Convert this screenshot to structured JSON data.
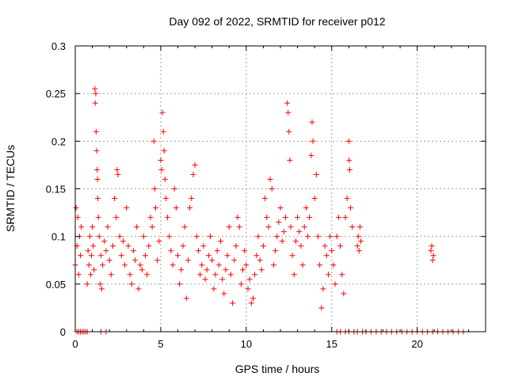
{
  "chart_data": {
    "type": "scatter",
    "title": "Day 092 of 2022, SRMTID for receiver p012",
    "xlabel": "GPS time / hours",
    "ylabel": "SRMTID / TECUs",
    "xlim": [
      0,
      24
    ],
    "ylim": [
      0,
      0.3
    ],
    "x_ticks": [
      0,
      5,
      10,
      15,
      20
    ],
    "y_ticks": [
      0,
      0.05,
      0.1,
      0.15,
      0.2,
      0.25,
      0.3
    ],
    "y_tick_labels": [
      "0",
      "0.05",
      "0.1",
      "0.15",
      "0.2",
      "0.25",
      "0.3"
    ],
    "grid": true,
    "marker": "+",
    "color": "#ff0000",
    "series": [
      {
        "name": "p012",
        "points": [
          [
            0.0,
            0.07
          ],
          [
            0.05,
            0.13
          ],
          [
            0.1,
            0.09
          ],
          [
            0.15,
            0.12
          ],
          [
            0.2,
            0.06
          ],
          [
            0.25,
            0.1
          ],
          [
            0.3,
            0.08
          ],
          [
            0.35,
            0.11
          ],
          [
            0.7,
            0.05
          ],
          [
            0.75,
            0.085
          ],
          [
            0.8,
            0.07
          ],
          [
            0.85,
            0.1
          ],
          [
            0.9,
            0.06
          ],
          [
            0.95,
            0.08
          ],
          [
            1.0,
            0.11
          ],
          [
            1.05,
            0.09
          ],
          [
            1.1,
            0.065
          ],
          [
            1.15,
            0.255
          ],
          [
            1.17,
            0.24
          ],
          [
            1.2,
            0.25
          ],
          [
            1.22,
            0.21
          ],
          [
            1.25,
            0.19
          ],
          [
            1.28,
            0.17
          ],
          [
            1.3,
            0.16
          ],
          [
            1.32,
            0.14
          ],
          [
            1.35,
            0.12
          ],
          [
            1.4,
            0.1
          ],
          [
            1.45,
            0.05
          ],
          [
            1.5,
            0.08
          ],
          [
            1.55,
            0.045
          ],
          [
            1.6,
            0.07
          ],
          [
            1.7,
            0.095
          ],
          [
            1.8,
            0.085
          ],
          [
            1.9,
            0.11
          ],
          [
            2.0,
            0.075
          ],
          [
            2.1,
            0.06
          ],
          [
            2.2,
            0.09
          ],
          [
            2.3,
            0.14
          ],
          [
            2.4,
            0.12
          ],
          [
            2.45,
            0.17
          ],
          [
            2.5,
            0.165
          ],
          [
            2.6,
            0.1
          ],
          [
            2.7,
            0.08
          ],
          [
            2.8,
            0.095
          ],
          [
            2.9,
            0.07
          ],
          [
            3.0,
            0.13
          ],
          [
            3.1,
            0.09
          ],
          [
            3.2,
            0.06
          ],
          [
            3.3,
            0.05
          ],
          [
            3.4,
            0.085
          ],
          [
            3.5,
            0.075
          ],
          [
            3.6,
            0.11
          ],
          [
            3.7,
            0.045
          ],
          [
            3.8,
            0.07
          ],
          [
            3.9,
            0.065
          ],
          [
            4.0,
            0.1
          ],
          [
            4.1,
            0.08
          ],
          [
            4.2,
            0.06
          ],
          [
            4.3,
            0.09
          ],
          [
            4.4,
            0.12
          ],
          [
            4.5,
            0.11
          ],
          [
            4.6,
            0.2
          ],
          [
            4.65,
            0.15
          ],
          [
            4.7,
            0.13
          ],
          [
            4.8,
            0.075
          ],
          [
            4.9,
            0.095
          ],
          [
            5.0,
            0.18
          ],
          [
            5.05,
            0.17
          ],
          [
            5.1,
            0.23
          ],
          [
            5.15,
            0.21
          ],
          [
            5.2,
            0.19
          ],
          [
            5.25,
            0.16
          ],
          [
            5.3,
            0.14
          ],
          [
            5.4,
            0.12
          ],
          [
            5.5,
            0.1
          ],
          [
            5.6,
            0.085
          ],
          [
            5.7,
            0.07
          ],
          [
            5.8,
            0.15
          ],
          [
            5.9,
            0.13
          ],
          [
            6.0,
            0.08
          ],
          [
            6.1,
            0.05
          ],
          [
            6.2,
            0.065
          ],
          [
            6.3,
            0.09
          ],
          [
            6.4,
            0.11
          ],
          [
            6.5,
            0.035
          ],
          [
            6.6,
            0.075
          ],
          [
            6.7,
            0.13
          ],
          [
            6.8,
            0.14
          ],
          [
            6.9,
            0.165
          ],
          [
            7.0,
            0.175
          ],
          [
            7.1,
            0.1
          ],
          [
            7.2,
            0.085
          ],
          [
            7.3,
            0.06
          ],
          [
            7.4,
            0.07
          ],
          [
            7.5,
            0.09
          ],
          [
            7.6,
            0.055
          ],
          [
            7.7,
            0.065
          ],
          [
            7.8,
            0.08
          ],
          [
            7.9,
            0.1
          ],
          [
            8.0,
            0.075
          ],
          [
            8.1,
            0.045
          ],
          [
            8.2,
            0.06
          ],
          [
            8.3,
            0.085
          ],
          [
            8.4,
            0.07
          ],
          [
            8.5,
            0.095
          ],
          [
            8.6,
            0.055
          ],
          [
            8.7,
            0.04
          ],
          [
            8.8,
            0.065
          ],
          [
            8.9,
            0.08
          ],
          [
            9.0,
            0.11
          ],
          [
            9.1,
            0.06
          ],
          [
            9.2,
            0.03
          ],
          [
            9.3,
            0.075
          ],
          [
            9.4,
            0.09
          ],
          [
            9.5,
            0.12
          ],
          [
            9.6,
            0.11
          ],
          [
            9.7,
            0.05
          ],
          [
            9.8,
            0.065
          ],
          [
            9.9,
            0.085
          ],
          [
            10.0,
            0.07
          ],
          [
            10.1,
            0.045
          ],
          [
            10.2,
            0.055
          ],
          [
            10.3,
            0.03
          ],
          [
            10.4,
            0.035
          ],
          [
            10.5,
            0.06
          ],
          [
            10.6,
            0.08
          ],
          [
            10.7,
            0.1
          ],
          [
            10.8,
            0.075
          ],
          [
            10.9,
            0.065
          ],
          [
            11.0,
            0.09
          ],
          [
            11.1,
            0.14
          ],
          [
            11.2,
            0.12
          ],
          [
            11.3,
            0.11
          ],
          [
            11.4,
            0.16
          ],
          [
            11.5,
            0.15
          ],
          [
            11.6,
            0.07
          ],
          [
            11.7,
            0.085
          ],
          [
            11.8,
            0.1
          ],
          [
            11.9,
            0.115
          ],
          [
            12.0,
            0.13
          ],
          [
            12.1,
            0.095
          ],
          [
            12.2,
            0.105
          ],
          [
            12.3,
            0.12
          ],
          [
            12.4,
            0.24
          ],
          [
            12.45,
            0.23
          ],
          [
            12.5,
            0.21
          ],
          [
            12.55,
            0.18
          ],
          [
            12.6,
            0.11
          ],
          [
            12.7,
            0.08
          ],
          [
            12.8,
            0.06
          ],
          [
            12.9,
            0.095
          ],
          [
            13.0,
            0.12
          ],
          [
            13.1,
            0.105
          ],
          [
            13.2,
            0.09
          ],
          [
            13.3,
            0.07
          ],
          [
            13.4,
            0.11
          ],
          [
            13.5,
            0.13
          ],
          [
            13.6,
            0.1
          ],
          [
            13.7,
            0.12
          ],
          [
            13.8,
            0.185
          ],
          [
            13.85,
            0.22
          ],
          [
            13.9,
            0.2
          ],
          [
            14.0,
            0.14
          ],
          [
            14.1,
            0.165
          ],
          [
            14.2,
            0.1
          ],
          [
            14.3,
            0.07
          ],
          [
            14.4,
            0.025
          ],
          [
            14.5,
            0.045
          ],
          [
            14.6,
            0.09
          ],
          [
            14.7,
            0.08
          ],
          [
            14.8,
            0.06
          ],
          [
            14.9,
            0.1
          ],
          [
            15.0,
            0.085
          ],
          [
            15.1,
            0.07
          ],
          [
            15.2,
            0.05
          ],
          [
            15.3,
            0.1
          ],
          [
            15.4,
            0.12
          ],
          [
            15.5,
            0.09
          ],
          [
            15.6,
            0.06
          ],
          [
            15.7,
            0.04
          ],
          [
            15.8,
            0.12
          ],
          [
            15.9,
            0.14
          ],
          [
            16.0,
            0.2
          ],
          [
            16.02,
            0.18
          ],
          [
            16.05,
            0.17
          ],
          [
            16.1,
            0.13
          ],
          [
            16.2,
            0.11
          ],
          [
            16.5,
            0.09
          ],
          [
            16.55,
            0.1
          ],
          [
            16.6,
            0.085
          ],
          [
            16.65,
            0.11
          ],
          [
            16.7,
            0.095
          ],
          [
            20.8,
            0.085
          ],
          [
            20.85,
            0.09
          ],
          [
            20.9,
            0.075
          ],
          [
            20.95,
            0.08
          ]
        ],
        "zero_points_x": [
          0.1,
          0.2,
          0.3,
          0.4,
          0.5,
          0.6,
          0.7,
          1.5,
          1.8,
          15.3,
          15.5,
          15.8,
          16.0,
          16.3,
          16.5,
          16.8,
          17.0,
          17.3,
          17.6,
          17.9,
          18.2,
          18.5,
          18.8,
          19.1,
          19.4,
          19.7,
          20.0,
          20.3,
          20.6,
          20.9,
          21.2,
          21.5,
          21.8,
          22.1,
          22.4,
          22.7
        ]
      }
    ]
  }
}
